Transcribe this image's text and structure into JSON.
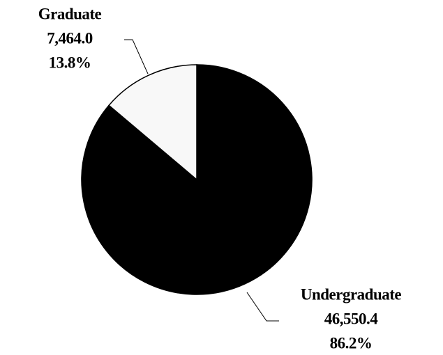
{
  "chart_data": {
    "type": "pie",
    "categories": [
      "Undergraduate",
      "Graduate"
    ],
    "values": [
      46550.4,
      7464.0
    ],
    "value_labels": [
      "46,550.4",
      "7,464.0"
    ],
    "percents": [
      86.2,
      13.8
    ],
    "percent_labels": [
      "86.2%",
      "13.8%"
    ],
    "colors": [
      "#000000",
      "#f8f8f8"
    ]
  }
}
